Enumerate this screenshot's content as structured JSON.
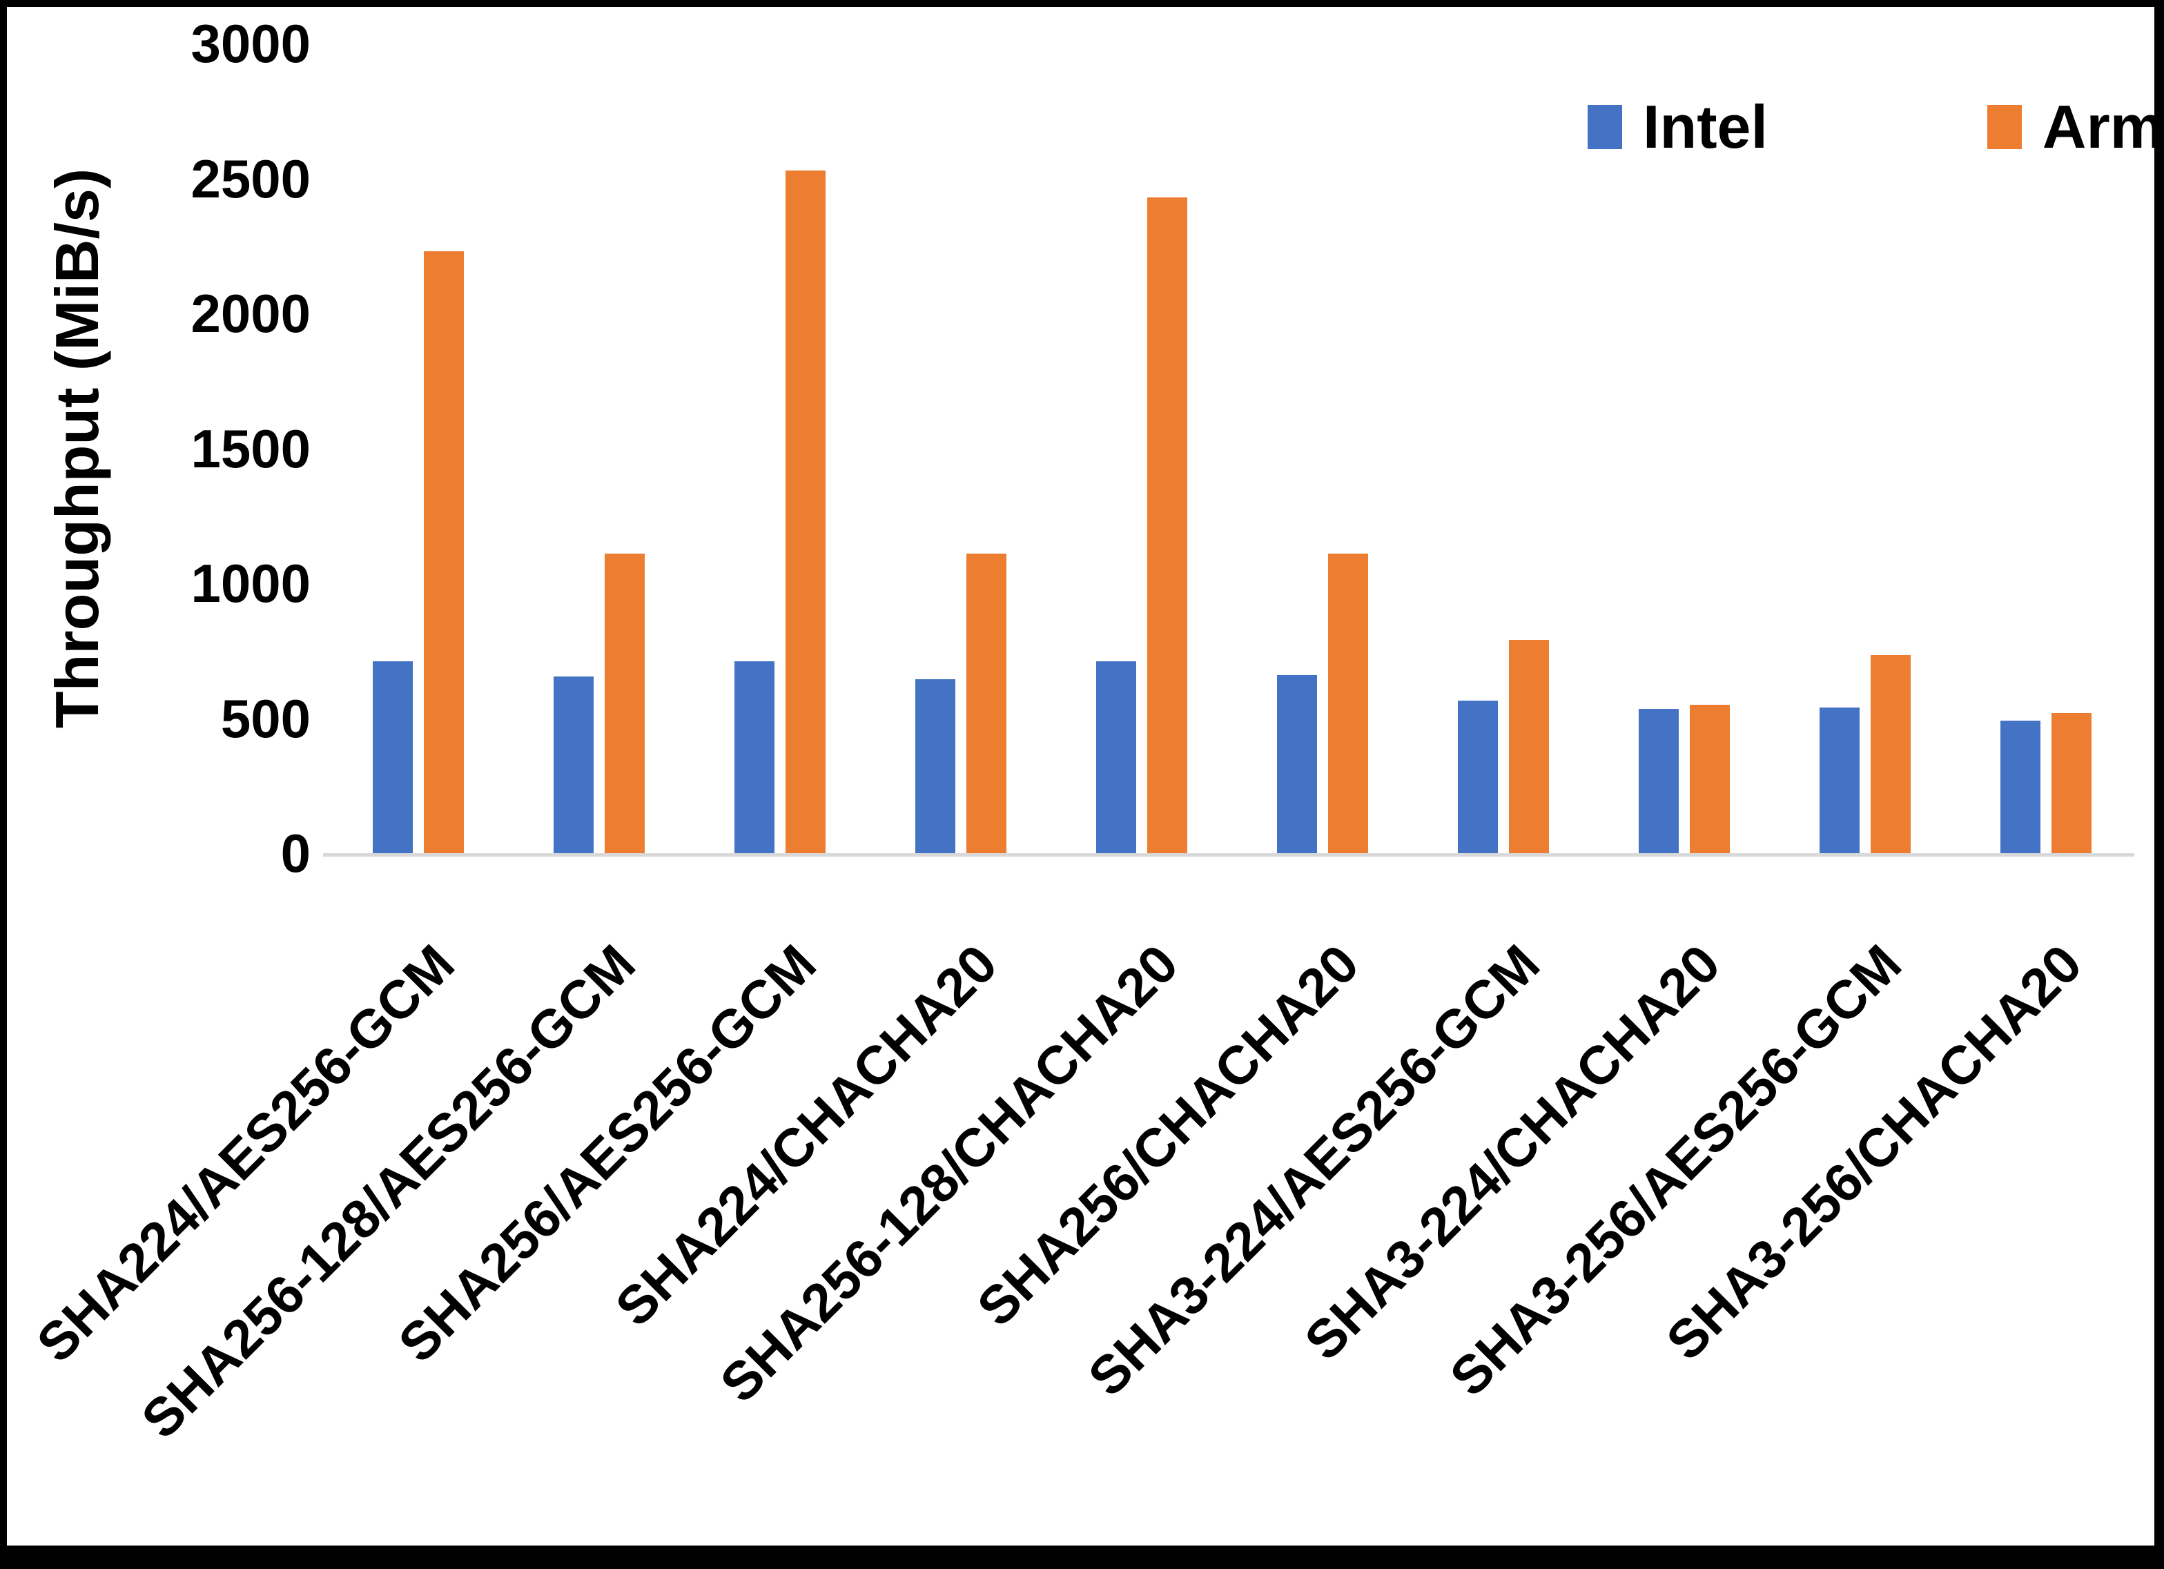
{
  "chart_data": {
    "type": "bar",
    "title": "",
    "ylabel": "Throughput (MiB/s)",
    "xlabel": "",
    "ylim": [
      0,
      3000
    ],
    "yticks": [
      0,
      500,
      1000,
      1500,
      2000,
      2500,
      3000
    ],
    "grid": false,
    "legend_position": "top-right",
    "categories": [
      "SHA224/AES256-GCM",
      "SHA256-128/AES256-GCM",
      "SHA256/AES256-GCM",
      "SHA224/CHACHA20",
      "SHA256-128/CHACHA20",
      "SHA256/CHACHA20",
      "SHA3-224/AES256-GCM",
      "SHA3-224/CHACHA20",
      "SHA3-256/AES256-GCM",
      "SHA3-256/CHACHA20"
    ],
    "series": [
      {
        "name": "Intel",
        "color": "#4472C4",
        "values": [
          710,
          655,
          710,
          645,
          710,
          660,
          565,
          535,
          540,
          490
        ]
      },
      {
        "name": "Arm",
        "color": "#ED7D31",
        "values": [
          2230,
          1110,
          2530,
          1110,
          2430,
          1110,
          790,
          550,
          735,
          520
        ]
      }
    ],
    "colors": {
      "axis_line": "#D9D9D9",
      "text": "#000000",
      "background": "#FFFFFF",
      "border": "#000000"
    }
  }
}
